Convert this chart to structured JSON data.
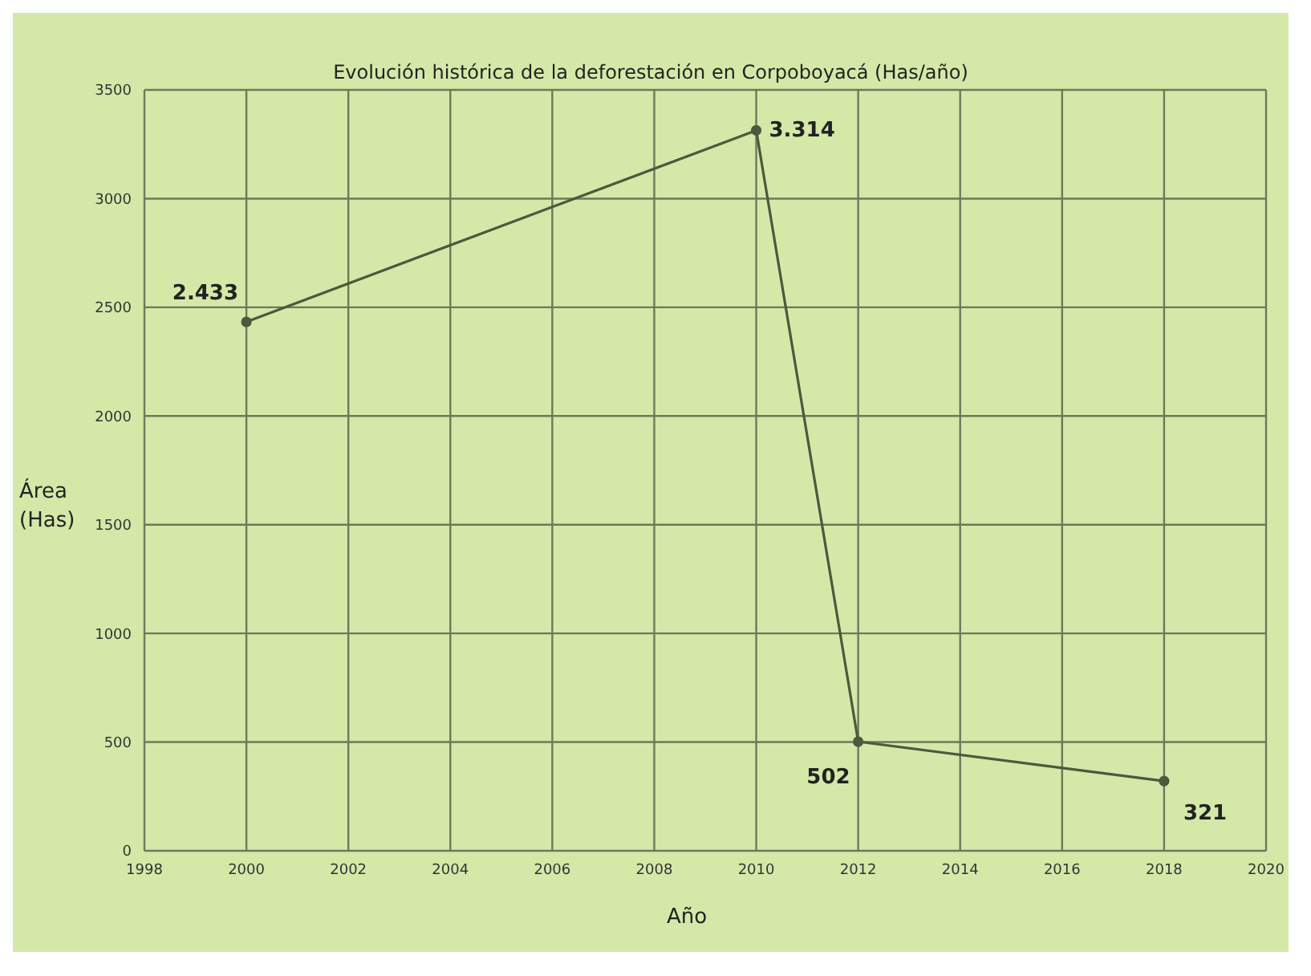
{
  "chart_data": {
    "type": "line",
    "title": "Evolución histórica de la deforestación en Corpoboyacá (Has/año)",
    "xlabel": "Año",
    "ylabel": "Área (Has)",
    "x": [
      2000,
      2010,
      2012,
      2018
    ],
    "series": [
      {
        "color": "#4b5a3c",
        "values": [
          2433,
          3314,
          502,
          321
        ],
        "value_labels": [
          "2.433",
          "3.314",
          "502",
          "321"
        ]
      }
    ],
    "xlim": [
      1998,
      2020
    ],
    "xticks": [
      1998,
      2000,
      2002,
      2004,
      2006,
      2008,
      2010,
      2012,
      2014,
      2016,
      2018,
      2020
    ],
    "ylim": [
      0,
      3500
    ],
    "yticks": [
      0,
      500,
      1000,
      1500,
      2000,
      2500,
      3000,
      3500
    ],
    "grid": true,
    "legend": false,
    "marker": "circle",
    "line_style": "solid"
  }
}
